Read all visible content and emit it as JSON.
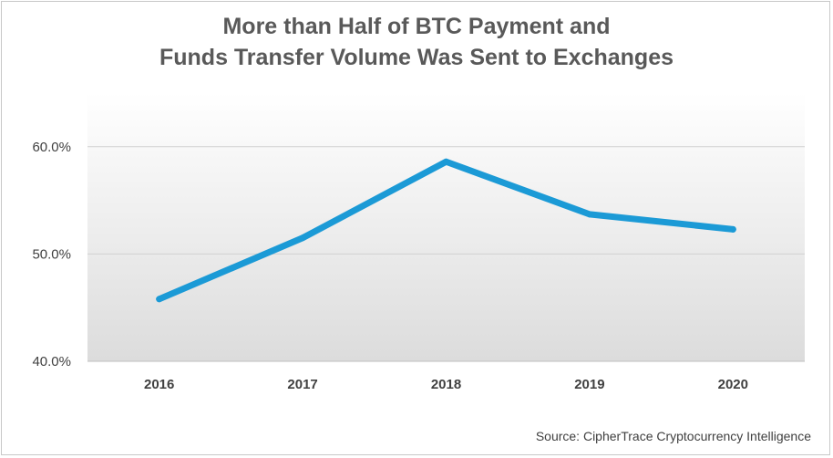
{
  "title_line1": "More than Half of BTC Payment and",
  "title_line2": "Funds Transfer Volume Was Sent to Exchanges",
  "source": "Source: CipherTrace Cryptocurrency Intelligence",
  "colors": {
    "line": "#1b9ad6",
    "plot_bg_top": "#ffffff",
    "plot_bg_bottom": "#dcdcdc",
    "grid": "#d0d0d0",
    "title": "#595959"
  },
  "chart_data": {
    "type": "line",
    "categories": [
      "2016",
      "2017",
      "2018",
      "2019",
      "2020"
    ],
    "series": [
      {
        "values": [
          45.8,
          51.5,
          58.6,
          53.7,
          52.3
        ]
      }
    ],
    "ylim": [
      40,
      65
    ],
    "yticks": [
      40,
      50,
      60
    ],
    "ytick_labels": [
      "40.0%",
      "50.0%",
      "60.0%"
    ],
    "xlabel": "",
    "ylabel": "",
    "grid": true,
    "legend": "none"
  }
}
